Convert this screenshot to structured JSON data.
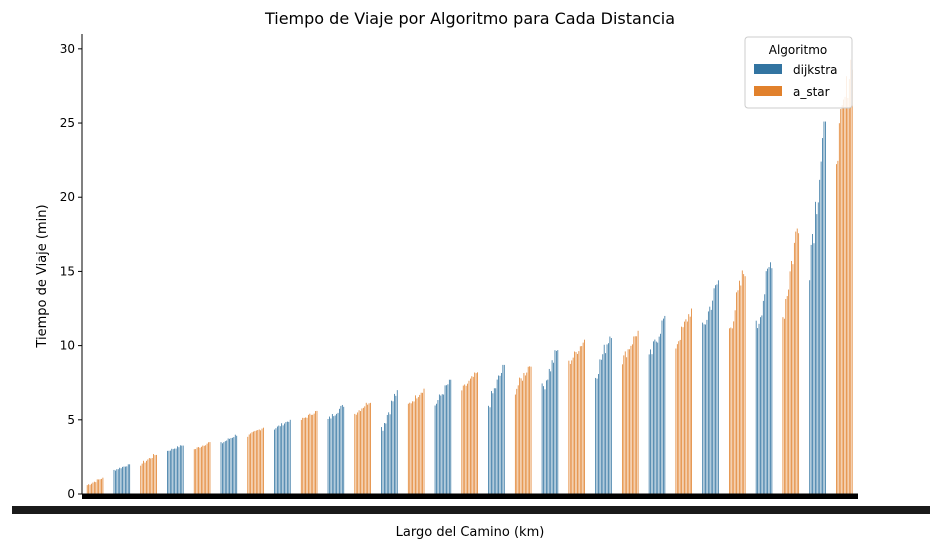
{
  "chart_data": {
    "type": "bar",
    "title": "Tiempo de Viaje por Algoritmo para Cada Distancia",
    "xlabel": "Largo del Camino (km)",
    "ylabel": "Tiempo de Viaje (min)",
    "ylim": [
      0,
      31
    ],
    "yticks": [
      0,
      5,
      10,
      15,
      20,
      25,
      30
    ],
    "grid": false,
    "legend": {
      "title": "Algoritmo",
      "placement": "top-right",
      "entries": [
        "dijkstra",
        "a_star"
      ]
    },
    "series": [
      {
        "name": "dijkstra",
        "color": "#3274a1",
        "groups": [
          {
            "from": 1.6,
            "to": 2.0
          },
          {
            "from": 2.9,
            "to": 3.3
          },
          {
            "from": 3.4,
            "to": 4.0
          },
          {
            "from": 4.4,
            "to": 5.0
          },
          {
            "from": 5.0,
            "to": 6.0
          },
          {
            "from": 4.4,
            "to": 7.0
          },
          {
            "from": 6.0,
            "to": 7.7
          },
          {
            "from": 6.0,
            "to": 8.7
          },
          {
            "from": 7.0,
            "to": 9.8
          },
          {
            "from": 8.0,
            "to": 11.0
          },
          {
            "from": 9.0,
            "to": 12.0
          },
          {
            "from": 11.0,
            "to": 14.4
          },
          {
            "from": 11.0,
            "to": 16.0
          },
          {
            "from": 16.0,
            "to": 25.1
          }
        ]
      },
      {
        "name": "a_star",
        "color": "#e1812c",
        "groups": [
          {
            "from": 0.6,
            "to": 1.1
          },
          {
            "from": 2.0,
            "to": 2.7
          },
          {
            "from": 3.0,
            "to": 3.5
          },
          {
            "from": 3.9,
            "to": 4.5
          },
          {
            "from": 5.0,
            "to": 5.6
          },
          {
            "from": 5.4,
            "to": 6.3
          },
          {
            "from": 6.0,
            "to": 7.1
          },
          {
            "from": 7.0,
            "to": 8.2
          },
          {
            "from": 7.0,
            "to": 8.9
          },
          {
            "from": 8.8,
            "to": 10.4
          },
          {
            "from": 9.0,
            "to": 11.0
          },
          {
            "from": 10.0,
            "to": 12.5
          },
          {
            "from": 11.0,
            "to": 15.3
          },
          {
            "from": 12.0,
            "to": 18.5
          },
          {
            "from": 23.0,
            "to": 29.6
          }
        ]
      }
    ]
  }
}
